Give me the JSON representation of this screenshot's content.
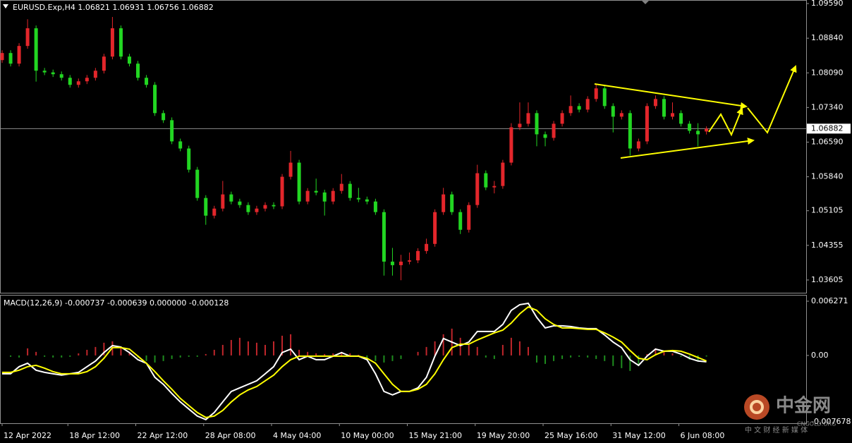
{
  "chart_data": [
    {
      "type": "candlestick",
      "title": "EURUSD.Exp,H4  1.06821 1.06931 1.06756 1.06882",
      "up_color": "#e3262b",
      "down_color": "#22d622",
      "open": [
        1.08366,
        1.08519,
        1.08289,
        1.08672,
        1.09055,
        1.08136,
        1.081,
        1.0806,
        1.07983,
        1.0783,
        1.07907,
        1.07983,
        1.08136,
        1.08442,
        1.09055,
        1.08442,
        1.08289,
        1.07983,
        1.0783,
        1.07218,
        1.07065,
        1.06606,
        1.06452,
        1.05993,
        1.05381,
        1.04998,
        1.05151,
        1.05458,
        1.05304,
        1.05228,
        1.05075,
        1.05151,
        1.05228,
        1.052,
        1.0584,
        1.06146,
        1.05304,
        1.05534,
        1.055,
        1.05304,
        1.05534,
        1.05687,
        1.05381,
        1.0535,
        1.05304,
        1.05075,
        1.04003,
        1.03926,
        1.04003,
        1.0403,
        1.04233,
        1.04386,
        1.05075,
        1.05458,
        1.05075,
        1.04692,
        1.05228,
        1.05917,
        1.0561,
        1.0564,
        1.06146,
        1.06911,
        1.06988,
        1.07218,
        1.06759,
        1.06682,
        1.06988,
        1.07218,
        1.07371,
        1.07294,
        1.07524,
        1.07754,
        1.07371,
        1.07141,
        1.07218,
        1.06452,
        1.06606,
        1.07371,
        1.07524,
        1.07141,
        1.07218,
        1.06988,
        1.06835,
        1.06821
      ],
      "high": [
        1.08579,
        1.08579,
        1.08732,
        1.0925,
        1.09115,
        1.08196,
        1.0816,
        1.0812,
        1.08043,
        1.07967,
        1.08043,
        1.08196,
        1.08502,
        1.093,
        1.09115,
        1.08502,
        1.08349,
        1.08043,
        1.0789,
        1.07278,
        1.07125,
        1.06666,
        1.06512,
        1.06053,
        1.05441,
        1.05211,
        1.0575,
        1.05518,
        1.05364,
        1.05288,
        1.05211,
        1.05288,
        1.05288,
        1.059,
        1.064,
        1.06206,
        1.05594,
        1.058,
        1.0556,
        1.05594,
        1.059,
        1.05747,
        1.056,
        1.0541,
        1.05364,
        1.05135,
        1.043,
        1.0415,
        1.042,
        1.04293,
        1.045,
        1.05135,
        1.056,
        1.05518,
        1.05135,
        1.05288,
        1.061,
        1.05977,
        1.0575,
        1.06206,
        1.07,
        1.0745,
        1.0745,
        1.07278,
        1.06819,
        1.07048,
        1.07278,
        1.076,
        1.07431,
        1.07584,
        1.0785,
        1.07814,
        1.07431,
        1.07278,
        1.07278,
        1.06666,
        1.07431,
        1.076,
        1.07584,
        1.0745,
        1.07278,
        1.07048,
        1.07,
        1.06931
      ],
      "low": [
        1.08306,
        1.08229,
        1.08229,
        1.08612,
        1.079,
        1.0804,
        1.08,
        1.07923,
        1.0777,
        1.0777,
        1.07847,
        1.07923,
        1.08076,
        1.08382,
        1.08382,
        1.08229,
        1.07923,
        1.0777,
        1.07158,
        1.07005,
        1.06546,
        1.06392,
        1.05933,
        1.05321,
        1.048,
        1.04938,
        1.05091,
        1.05244,
        1.05168,
        1.05015,
        1.05015,
        1.05091,
        1.0514,
        1.0514,
        1.0578,
        1.05244,
        1.05244,
        1.0544,
        1.05,
        1.05244,
        1.05474,
        1.05321,
        1.0529,
        1.05244,
        1.05015,
        1.037,
        1.037,
        1.036,
        1.03943,
        1.0397,
        1.04173,
        1.04326,
        1.05015,
        1.05015,
        1.046,
        1.04632,
        1.05168,
        1.0555,
        1.0548,
        1.0558,
        1.06086,
        1.06851,
        1.06928,
        1.065,
        1.065,
        1.06622,
        1.06928,
        1.07158,
        1.07234,
        1.07234,
        1.07464,
        1.07311,
        1.068,
        1.07081,
        1.063,
        1.06392,
        1.06546,
        1.07311,
        1.07081,
        1.07081,
        1.06928,
        1.06775,
        1.065,
        1.06756
      ],
      "close": [
        1.08519,
        1.08289,
        1.08672,
        1.09055,
        1.08136,
        1.081,
        1.0806,
        1.07983,
        1.0783,
        1.07907,
        1.07983,
        1.08136,
        1.08442,
        1.09055,
        1.08442,
        1.08289,
        1.07983,
        1.0783,
        1.07218,
        1.07065,
        1.06606,
        1.06452,
        1.05993,
        1.05381,
        1.04998,
        1.05151,
        1.05458,
        1.05304,
        1.05228,
        1.05075,
        1.05151,
        1.05228,
        1.052,
        1.0584,
        1.06146,
        1.05304,
        1.05534,
        1.055,
        1.05304,
        1.05534,
        1.05687,
        1.05381,
        1.0535,
        1.05304,
        1.05075,
        1.04003,
        1.03926,
        1.04003,
        1.0403,
        1.04233,
        1.04386,
        1.05075,
        1.05458,
        1.05075,
        1.04692,
        1.05228,
        1.05917,
        1.0561,
        1.0564,
        1.06146,
        1.06911,
        1.06988,
        1.07218,
        1.06759,
        1.06682,
        1.06988,
        1.07218,
        1.07371,
        1.07294,
        1.07524,
        1.07754,
        1.07371,
        1.07141,
        1.07218,
        1.06452,
        1.06606,
        1.07371,
        1.07524,
        1.07141,
        1.07218,
        1.06988,
        1.06835,
        1.06759,
        1.06882
      ],
      "current_price": 1.06882,
      "xlim": [
        -0.25,
        94.75
      ],
      "ylim": [
        1.03329,
        1.09667
      ],
      "yticks": [
        {
          "value": 1.0959,
          "label": "1.09590"
        },
        {
          "value": 1.0884,
          "label": "1.08840"
        },
        {
          "value": 1.0809,
          "label": "1.08090"
        },
        {
          "value": 1.0734,
          "label": "1.07340"
        },
        {
          "value": 1.0659,
          "label": "1.06590"
        },
        {
          "value": 1.0584,
          "label": "1.05840"
        },
        1.05105,
        1.04355,
        1.03605
      ],
      "grid": false
    },
    {
      "type": "macd",
      "title": "MACD(12,26,9) -0.000737 -0.000639 0.000000 -0.000128",
      "series": [
        {
          "color": "#ffffff",
          "values": [
            -0.00212,
            -0.00212,
            -0.0013,
            -0.0009,
            -0.00171,
            -0.00196,
            -0.00212,
            -0.00228,
            -0.00212,
            -0.00196,
            -0.0013,
            -0.00065,
            0.00033,
            0.00114,
            0.00098,
            0.00033,
            -0.00049,
            -0.0009,
            -0.00253,
            -0.00334,
            -0.0044,
            -0.00538,
            -0.00619,
            -0.00701,
            -0.00742,
            -0.0066,
            -0.00538,
            -0.00416,
            -0.00375,
            -0.00334,
            -0.00293,
            -0.00212,
            -0.0013,
            0.00033,
            0.00073,
            -0.00049,
            -8e-05,
            -0.00049,
            -0.00049,
            -8e-05,
            0.00033,
            -8e-05,
            -8e-05,
            -0.00049,
            -0.00212,
            -0.00416,
            -0.00456,
            -0.00416,
            -0.00416,
            -0.00375,
            -0.00253,
            -8e-05,
            0.00196,
            0.00155,
            0.00114,
            0.00155,
            0.00277,
            0.00277,
            0.00277,
            0.00359,
            0.00522,
            0.00587,
            0.00603,
            0.0044,
            0.00318,
            0.00342,
            0.00342,
            0.00334,
            0.00318,
            0.0031,
            0.0031,
            0.00236,
            0.00155,
            0.0009,
            -0.00049,
            -0.00114,
            -8e-05,
            0.00073,
            0.00049,
            0.00049,
            0.00016,
            -0.00033,
            -0.00065,
            -0.000737
          ]
        },
        {
          "color": "#ffff00",
          "values": [
            -0.00196,
            -0.00196,
            -0.00171,
            -0.0013,
            -0.00114,
            -0.00147,
            -0.00187,
            -0.00212,
            -0.00212,
            -0.00212,
            -0.00187,
            -0.0013,
            -0.00033,
            0.0009,
            0.0009,
            0.00073,
            -8e-05,
            -0.0009,
            -0.00187,
            -0.00293,
            -0.00391,
            -0.00497,
            -0.00579,
            -0.0066,
            -0.00717,
            -0.00701,
            -0.00636,
            -0.00538,
            -0.00456,
            -0.00399,
            -0.00359,
            -0.00293,
            -0.00228,
            -0.0013,
            -0.00049,
            -8e-05,
            -8e-05,
            -8e-05,
            -8e-05,
            -8e-05,
            -8e-05,
            -8e-05,
            -8e-05,
            -0.00033,
            -0.0009,
            -0.00212,
            -0.00334,
            -0.00416,
            -0.00416,
            -0.00391,
            -0.00334,
            -0.00212,
            -0.00049,
            0.0009,
            0.0013,
            0.0013,
            0.00179,
            0.0022,
            0.00261,
            0.00293,
            0.00375,
            0.00481,
            0.00562,
            0.00522,
            0.00424,
            0.00359,
            0.00318,
            0.00318,
            0.0031,
            0.00302,
            0.00302,
            0.00261,
            0.00212,
            0.00155,
            0.00057,
            -0.00033,
            -0.00049,
            8e-05,
            0.00049,
            0.00057,
            0.00049,
            0.00016,
            -0.00024,
            -0.000639
          ]
        }
      ],
      "histogram": {
        "positive_color": "#c0262b",
        "negative_color": "#1e8c1e",
        "values": [
          0,
          -0.00016,
          -0.00024,
          0.00082,
          0.00041,
          -0.00016,
          -0.00024,
          -0.00024,
          -0.00016,
          0.00024,
          0.00065,
          0.00098,
          0.00147,
          0.00163,
          0.00082,
          0.00041,
          -0.00024,
          -0.00065,
          -0.00082,
          -0.00065,
          -0.00041,
          -0.00024,
          -0.00016,
          -0.00016,
          0.00016,
          0.00065,
          0.00122,
          0.00179,
          0.00204,
          0.00163,
          0.00147,
          0.00122,
          0.00163,
          0.00228,
          0.00245,
          0.00065,
          0.00041,
          0.00024,
          0.00016,
          0.00024,
          0.00041,
          0.00024,
          8e-05,
          -0.00024,
          -0.00065,
          -0.00082,
          -0.00065,
          -0.00041,
          0,
          0.00041,
          0.00098,
          0.00163,
          0.00245,
          0.0031,
          0.00204,
          0.00122,
          0.00098,
          -0.00024,
          -0.00041,
          0.00122,
          0.00204,
          0.00163,
          0.00098,
          -0.00082,
          -0.00098,
          -0.00065,
          -0.00041,
          -0.00024,
          -0.00016,
          -0.00024,
          -0.00041,
          -0.00065,
          -0.00122,
          -0.00147,
          -0.00179,
          -0.00122,
          0.00016,
          0.00082,
          0.00049,
          0.00024,
          -0.00016,
          -0.00049,
          -0.00065,
          -0.000128
        ]
      },
      "xlim": [
        -0.25,
        94.75
      ],
      "ylim": [
        -0.007841,
        0.007005
      ],
      "yticks": [
        0.006271,
        {
          "value": 0,
          "label": "0.00"
        },
        -0.007678
      ],
      "xticks": [
        {
          "value": 0,
          "label": "12 Apr 2022"
        },
        {
          "value": 7.75,
          "label": "18 Apr 12:00"
        },
        {
          "value": 15.75,
          "label": "22 Apr 12:00"
        },
        {
          "value": 23.75,
          "label": "28 Apr 08:00"
        },
        {
          "value": 31.75,
          "label": "4 May 04:00"
        },
        {
          "value": 39.75,
          "label": "10 May 00:00"
        },
        {
          "value": 47.75,
          "label": "15 May 21:00"
        },
        {
          "value": 55.75,
          "label": "19 May 20:00"
        },
        {
          "value": 63.75,
          "label": "25 May 16:00"
        },
        {
          "value": 71.75,
          "label": "31 May 12:00"
        },
        {
          "value": 79.75,
          "label": "6 Jun 08:00"
        }
      ],
      "grid": false
    }
  ],
  "watermark": {
    "name": "中金网",
    "site": "CNGOLD.ORG",
    "slogan": "中 文 财 经 新 媒 体"
  }
}
